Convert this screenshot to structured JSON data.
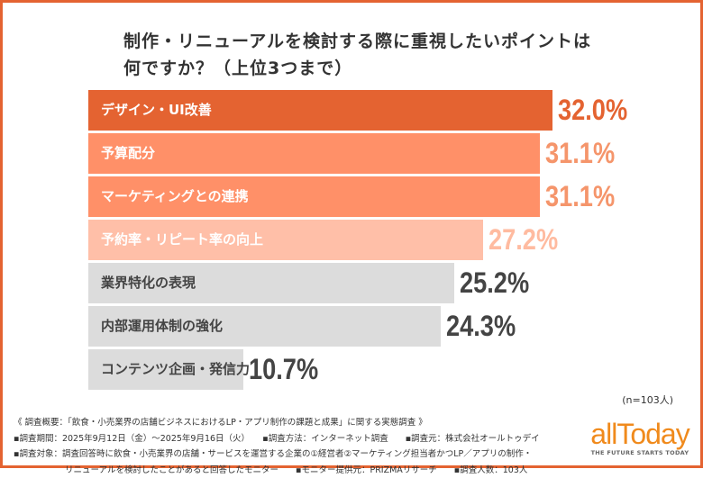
{
  "chart_data": {
    "type": "bar",
    "orientation": "horizontal",
    "title": "制作・リニューアルを検討する際に重視したいポイントは\n何ですか？（上位3つまで）",
    "title_lines": [
      "制作・リニューアルを検討する際に重視したいポイントは",
      "何ですか？（上位3つまで）"
    ],
    "categories": [
      "デザイン・UI改善",
      "予算配分",
      "マーケティングとの連携",
      "予約率・リピート率の向上",
      "業界特化の表現",
      "内部運用体制の強化",
      "コンテンツ企画・発信力"
    ],
    "values": [
      32.0,
      31.1,
      31.1,
      27.2,
      25.2,
      24.3,
      10.7
    ],
    "value_labels": [
      "32.0%",
      "31.1%",
      "31.1%",
      "27.2%",
      "25.2%",
      "24.3%",
      "10.7%"
    ],
    "bar_colors": [
      "#e46331",
      "#ff9068",
      "#ff9068",
      "#ffbfa8",
      "#dcdcdc",
      "#dcdcdc",
      "#dcdcdc"
    ],
    "label_colors": [
      "#e46331",
      "#f5956b",
      "#f5956b",
      "#ffbba0",
      "#444444",
      "#444444",
      "#444444"
    ],
    "xlim": [
      0,
      32
    ],
    "grid": false,
    "sample_note": "(n=103人)"
  },
  "footer": {
    "lines": [
      "《 調査概要：「飲食・小売業界の店舗ビジネスにおけるLP・アプリ制作の課題と成果」に関する実態調査 》",
      "▪調査期間：2025年9月12日（金）～2025年9月16日（火）　　▪調査方法：インターネット調査　　▪調査元：株式会社オールトゥデイ",
      "▪調査対象：調査回答時に飲食・小売業界の店舗・サービスを運営する企業の①経営者②マーケティング担当者かつLP／アプリの制作・",
      "　　　　　　リニューアルを検討したことがあると回答したモニター　　▪モニター提供元：PRIZMAリサーチ　　▪調査人数：103人"
    ]
  },
  "logo": {
    "word": "allToday",
    "tagline": "THE FUTURE STARTS TODAY",
    "color": "#f08a1c"
  },
  "frame_color": "#e46331"
}
